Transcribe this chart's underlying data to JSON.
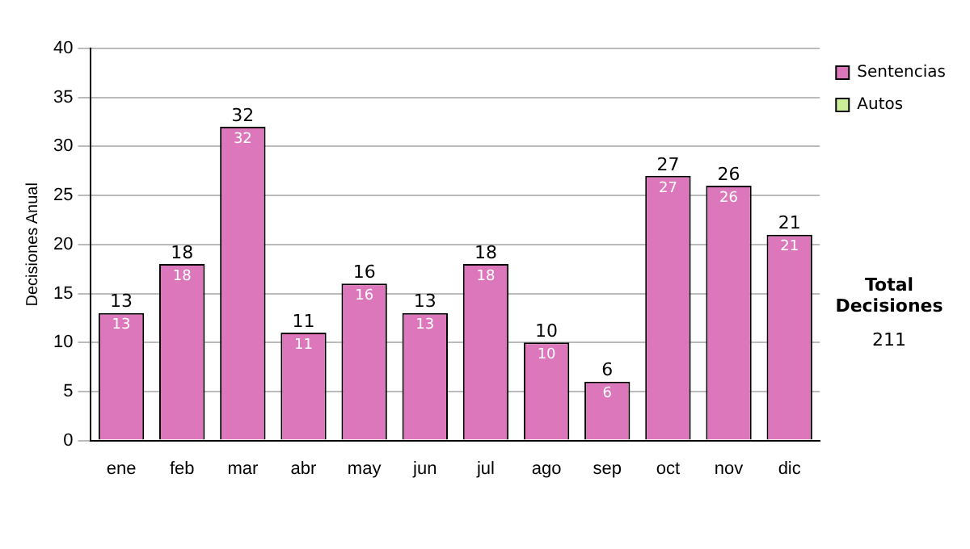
{
  "chart_data": {
    "type": "bar",
    "ylabel": "Decisiones Anual",
    "categories": [
      "ene",
      "feb",
      "mar",
      "abr",
      "may",
      "jun",
      "jul",
      "ago",
      "sep",
      "oct",
      "nov",
      "dic"
    ],
    "series": [
      {
        "name": "Sentencias",
        "color": "#dd77bb",
        "values": [
          13,
          18,
          32,
          11,
          16,
          13,
          18,
          10,
          6,
          27,
          26,
          21
        ],
        "value_labels": [
          "13",
          "18",
          "32",
          "11",
          "16",
          "13",
          "18",
          "10",
          "6",
          "27",
          "26",
          "21"
        ]
      },
      {
        "name": "Autos",
        "color": "#ccee99",
        "values": [
          0,
          0,
          0,
          0,
          0,
          0,
          0,
          0,
          0,
          0,
          0,
          0
        ]
      }
    ],
    "stacked": true,
    "totals": [
      "13",
      "18",
      "32",
      "11",
      "16",
      "13",
      "18",
      "10",
      "6",
      "27",
      "26",
      "21"
    ],
    "ylim": [
      0,
      40
    ],
    "yticks": [
      0,
      5,
      10,
      15,
      20,
      25,
      30,
      35,
      40
    ],
    "grid": "y",
    "legend": "right",
    "annotations": [
      "Total Decisiones",
      "211"
    ]
  }
}
